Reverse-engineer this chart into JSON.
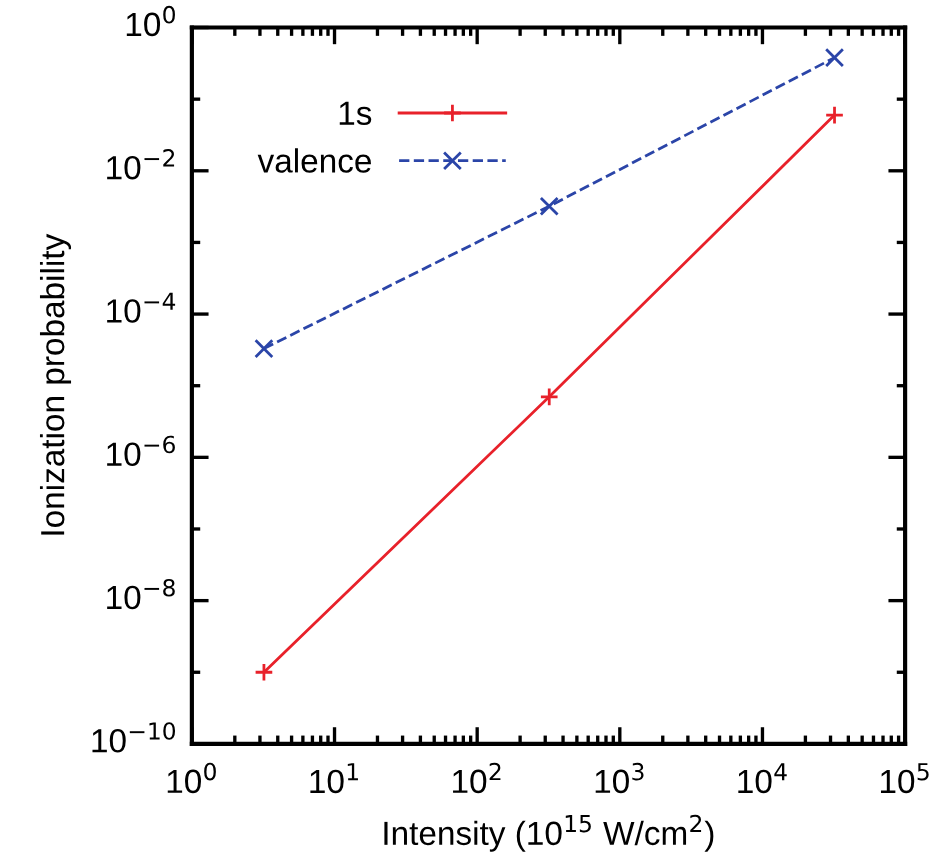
{
  "chart_data": {
    "type": "line",
    "xlabel": "Intensity (10$^{15}$ W/cm$^{2}$)",
    "ylabel": "Ionization probability",
    "log": "xy",
    "grid": false,
    "legend": "top left",
    "xlim": [
      1,
      100000
    ],
    "ylim": [
      1e-10,
      1
    ],
    "xticks": [
      {
        "value": 1,
        "label": "10$^{0}$"
      },
      {
        "value": 10,
        "label": "10$^{1}$"
      },
      {
        "value": 100,
        "label": "10$^{2}$"
      },
      {
        "value": 1000,
        "label": "10$^{3}$"
      },
      {
        "value": 10000,
        "label": "10$^{4}$"
      },
      {
        "value": 100000,
        "label": "10$^{5}$"
      }
    ],
    "yticks": [
      {
        "value": 1e-10,
        "label": "10$^{−10}$"
      },
      {
        "value": 1e-08,
        "label": "10$^{−8}$"
      },
      {
        "value": 1e-06,
        "label": "10$^{−6}$"
      },
      {
        "value": 0.0001,
        "label": "10$^{−4}$"
      },
      {
        "value": 0.01,
        "label": "10$^{−2}$"
      },
      {
        "value": 1,
        "label": "10$^{0}$"
      }
    ],
    "x": [
      3.2,
      320,
      32000
    ],
    "series": [
      {
        "name": "1s",
        "color": "#e8212a",
        "values": [
          1e-09,
          7e-06,
          0.06
        ],
        "marker": "plus",
        "line_style": "solid"
      },
      {
        "name": "valence",
        "color": "#2b45a8",
        "values": [
          3.3e-05,
          0.0032,
          0.38
        ],
        "marker": "cross",
        "line_style": "dashed"
      }
    ]
  }
}
